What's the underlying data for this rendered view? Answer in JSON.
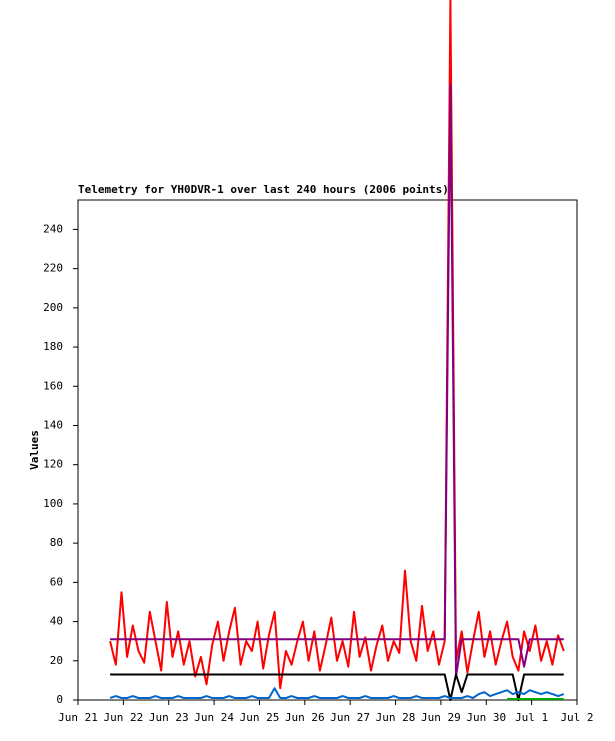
{
  "chart_data": {
    "type": "line",
    "title": "Telemetry for YH0DVR-1 over last 240 hours (2006 points)",
    "y_label": "Values",
    "x": [
      17,
      20,
      23,
      26,
      29,
      32,
      35,
      38,
      41,
      44,
      47,
      50,
      53,
      56,
      59,
      62,
      65,
      68,
      71,
      74,
      77,
      80,
      83,
      86,
      89,
      92,
      95,
      98,
      101,
      104,
      107,
      110,
      113,
      116,
      119,
      122,
      125,
      128,
      131,
      134,
      137,
      140,
      143,
      146,
      149,
      152,
      155,
      158,
      161,
      164,
      167,
      170,
      173,
      176,
      179,
      182,
      185,
      188,
      191,
      194,
      197,
      200,
      203,
      206,
      209,
      212,
      215,
      218,
      221,
      224,
      227,
      230,
      233,
      236,
      239,
      242,
      245,
      248,
      251,
      254,
      257
    ],
    "series": [
      {
        "color": "#ff0000",
        "values": [
          30,
          18,
          55,
          22,
          38,
          25,
          19,
          45,
          30,
          15,
          50,
          22,
          35,
          18,
          30,
          12,
          22,
          8,
          28,
          40,
          20,
          35,
          47,
          18,
          30,
          25,
          40,
          16,
          33,
          45,
          6,
          25,
          18,
          30,
          40,
          20,
          35,
          15,
          28,
          42,
          20,
          30,
          17,
          45,
          22,
          32,
          15,
          28,
          38,
          20,
          30,
          24,
          66,
          30,
          20,
          48,
          25,
          35,
          18,
          30,
          357,
          20,
          35,
          14,
          30,
          45,
          22,
          35,
          18,
          30,
          40,
          22,
          15,
          35,
          25,
          38,
          20,
          30,
          18,
          33,
          25
        ]
      },
      {
        "color": "#800080",
        "values": [
          31,
          31,
          31,
          31,
          31,
          31,
          31,
          31,
          31,
          31,
          31,
          31,
          31,
          31,
          31,
          31,
          31,
          31,
          31,
          31,
          31,
          31,
          31,
          31,
          31,
          31,
          31,
          31,
          31,
          31,
          31,
          31,
          31,
          31,
          31,
          31,
          31,
          31,
          31,
          31,
          31,
          31,
          31,
          31,
          31,
          31,
          31,
          31,
          31,
          31,
          31,
          31,
          31,
          31,
          31,
          31,
          31,
          31,
          31,
          31,
          314,
          12,
          31,
          31,
          31,
          31,
          31,
          31,
          31,
          31,
          31,
          31,
          31,
          17,
          31,
          31,
          31,
          31,
          31,
          31,
          31
        ]
      },
      {
        "color": "#000000",
        "values": [
          13,
          13,
          13,
          13,
          13,
          13,
          13,
          13,
          13,
          13,
          13,
          13,
          13,
          13,
          13,
          13,
          13,
          13,
          13,
          13,
          13,
          13,
          13,
          13,
          13,
          13,
          13,
          13,
          13,
          13,
          13,
          13,
          13,
          13,
          13,
          13,
          13,
          13,
          13,
          13,
          13,
          13,
          13,
          13,
          13,
          13,
          13,
          13,
          13,
          13,
          13,
          13,
          13,
          13,
          13,
          13,
          13,
          13,
          13,
          13,
          0,
          13,
          4,
          13,
          13,
          13,
          13,
          13,
          13,
          13,
          13,
          13,
          0,
          13,
          13,
          13,
          13,
          13,
          13,
          13,
          13
        ]
      },
      {
        "color": "#0066cc",
        "values": [
          1,
          2,
          1,
          1,
          2,
          1,
          1,
          1,
          2,
          1,
          1,
          1,
          2,
          1,
          1,
          1,
          1,
          2,
          1,
          1,
          1,
          2,
          1,
          1,
          1,
          2,
          1,
          1,
          1,
          6,
          1,
          1,
          2,
          1,
          1,
          1,
          2,
          1,
          1,
          1,
          1,
          2,
          1,
          1,
          1,
          2,
          1,
          1,
          1,
          1,
          2,
          1,
          1,
          1,
          2,
          1,
          1,
          1,
          1,
          2,
          1,
          1,
          1,
          2,
          1,
          3,
          4,
          2,
          3,
          4,
          5,
          3,
          4,
          3,
          5,
          4,
          3,
          4,
          3,
          2,
          3
        ]
      },
      {
        "color": "#00aa00",
        "values": [
          null,
          null,
          null,
          null,
          null,
          null,
          null,
          null,
          null,
          null,
          null,
          null,
          null,
          null,
          null,
          null,
          null,
          null,
          null,
          null,
          null,
          null,
          null,
          null,
          null,
          null,
          null,
          null,
          null,
          null,
          null,
          null,
          null,
          null,
          null,
          null,
          null,
          null,
          null,
          null,
          null,
          null,
          null,
          null,
          null,
          null,
          null,
          null,
          null,
          null,
          null,
          null,
          null,
          null,
          null,
          null,
          null,
          null,
          null,
          null,
          null,
          null,
          null,
          null,
          null,
          null,
          null,
          null,
          null,
          null,
          0.5,
          0.5,
          0.5,
          0.5,
          0.5,
          0.5,
          0.5,
          0.5,
          0.5,
          0.5,
          0.5
        ]
      }
    ],
    "xlim": [
      0,
      264
    ],
    "xticks": [
      {
        "value": 0,
        "label": "Jun 21"
      },
      {
        "value": 24,
        "label": "Jun 22"
      },
      {
        "value": 48,
        "label": "Jun 23"
      },
      {
        "value": 72,
        "label": "Jun 24"
      },
      {
        "value": 96,
        "label": "Jun 25"
      },
      {
        "value": 120,
        "label": "Jun 26"
      },
      {
        "value": 144,
        "label": "Jun 27"
      },
      {
        "value": 168,
        "label": "Jun 28"
      },
      {
        "value": 192,
        "label": "Jun 29"
      },
      {
        "value": 216,
        "label": "Jun 30"
      },
      {
        "value": 240,
        "label": "Jul 1"
      },
      {
        "value": 264,
        "label": "Jul 2"
      }
    ],
    "ylim": [
      0,
      255
    ],
    "yticks": [
      0,
      20,
      40,
      60,
      80,
      100,
      120,
      140,
      160,
      180,
      200,
      220,
      240
    ]
  }
}
